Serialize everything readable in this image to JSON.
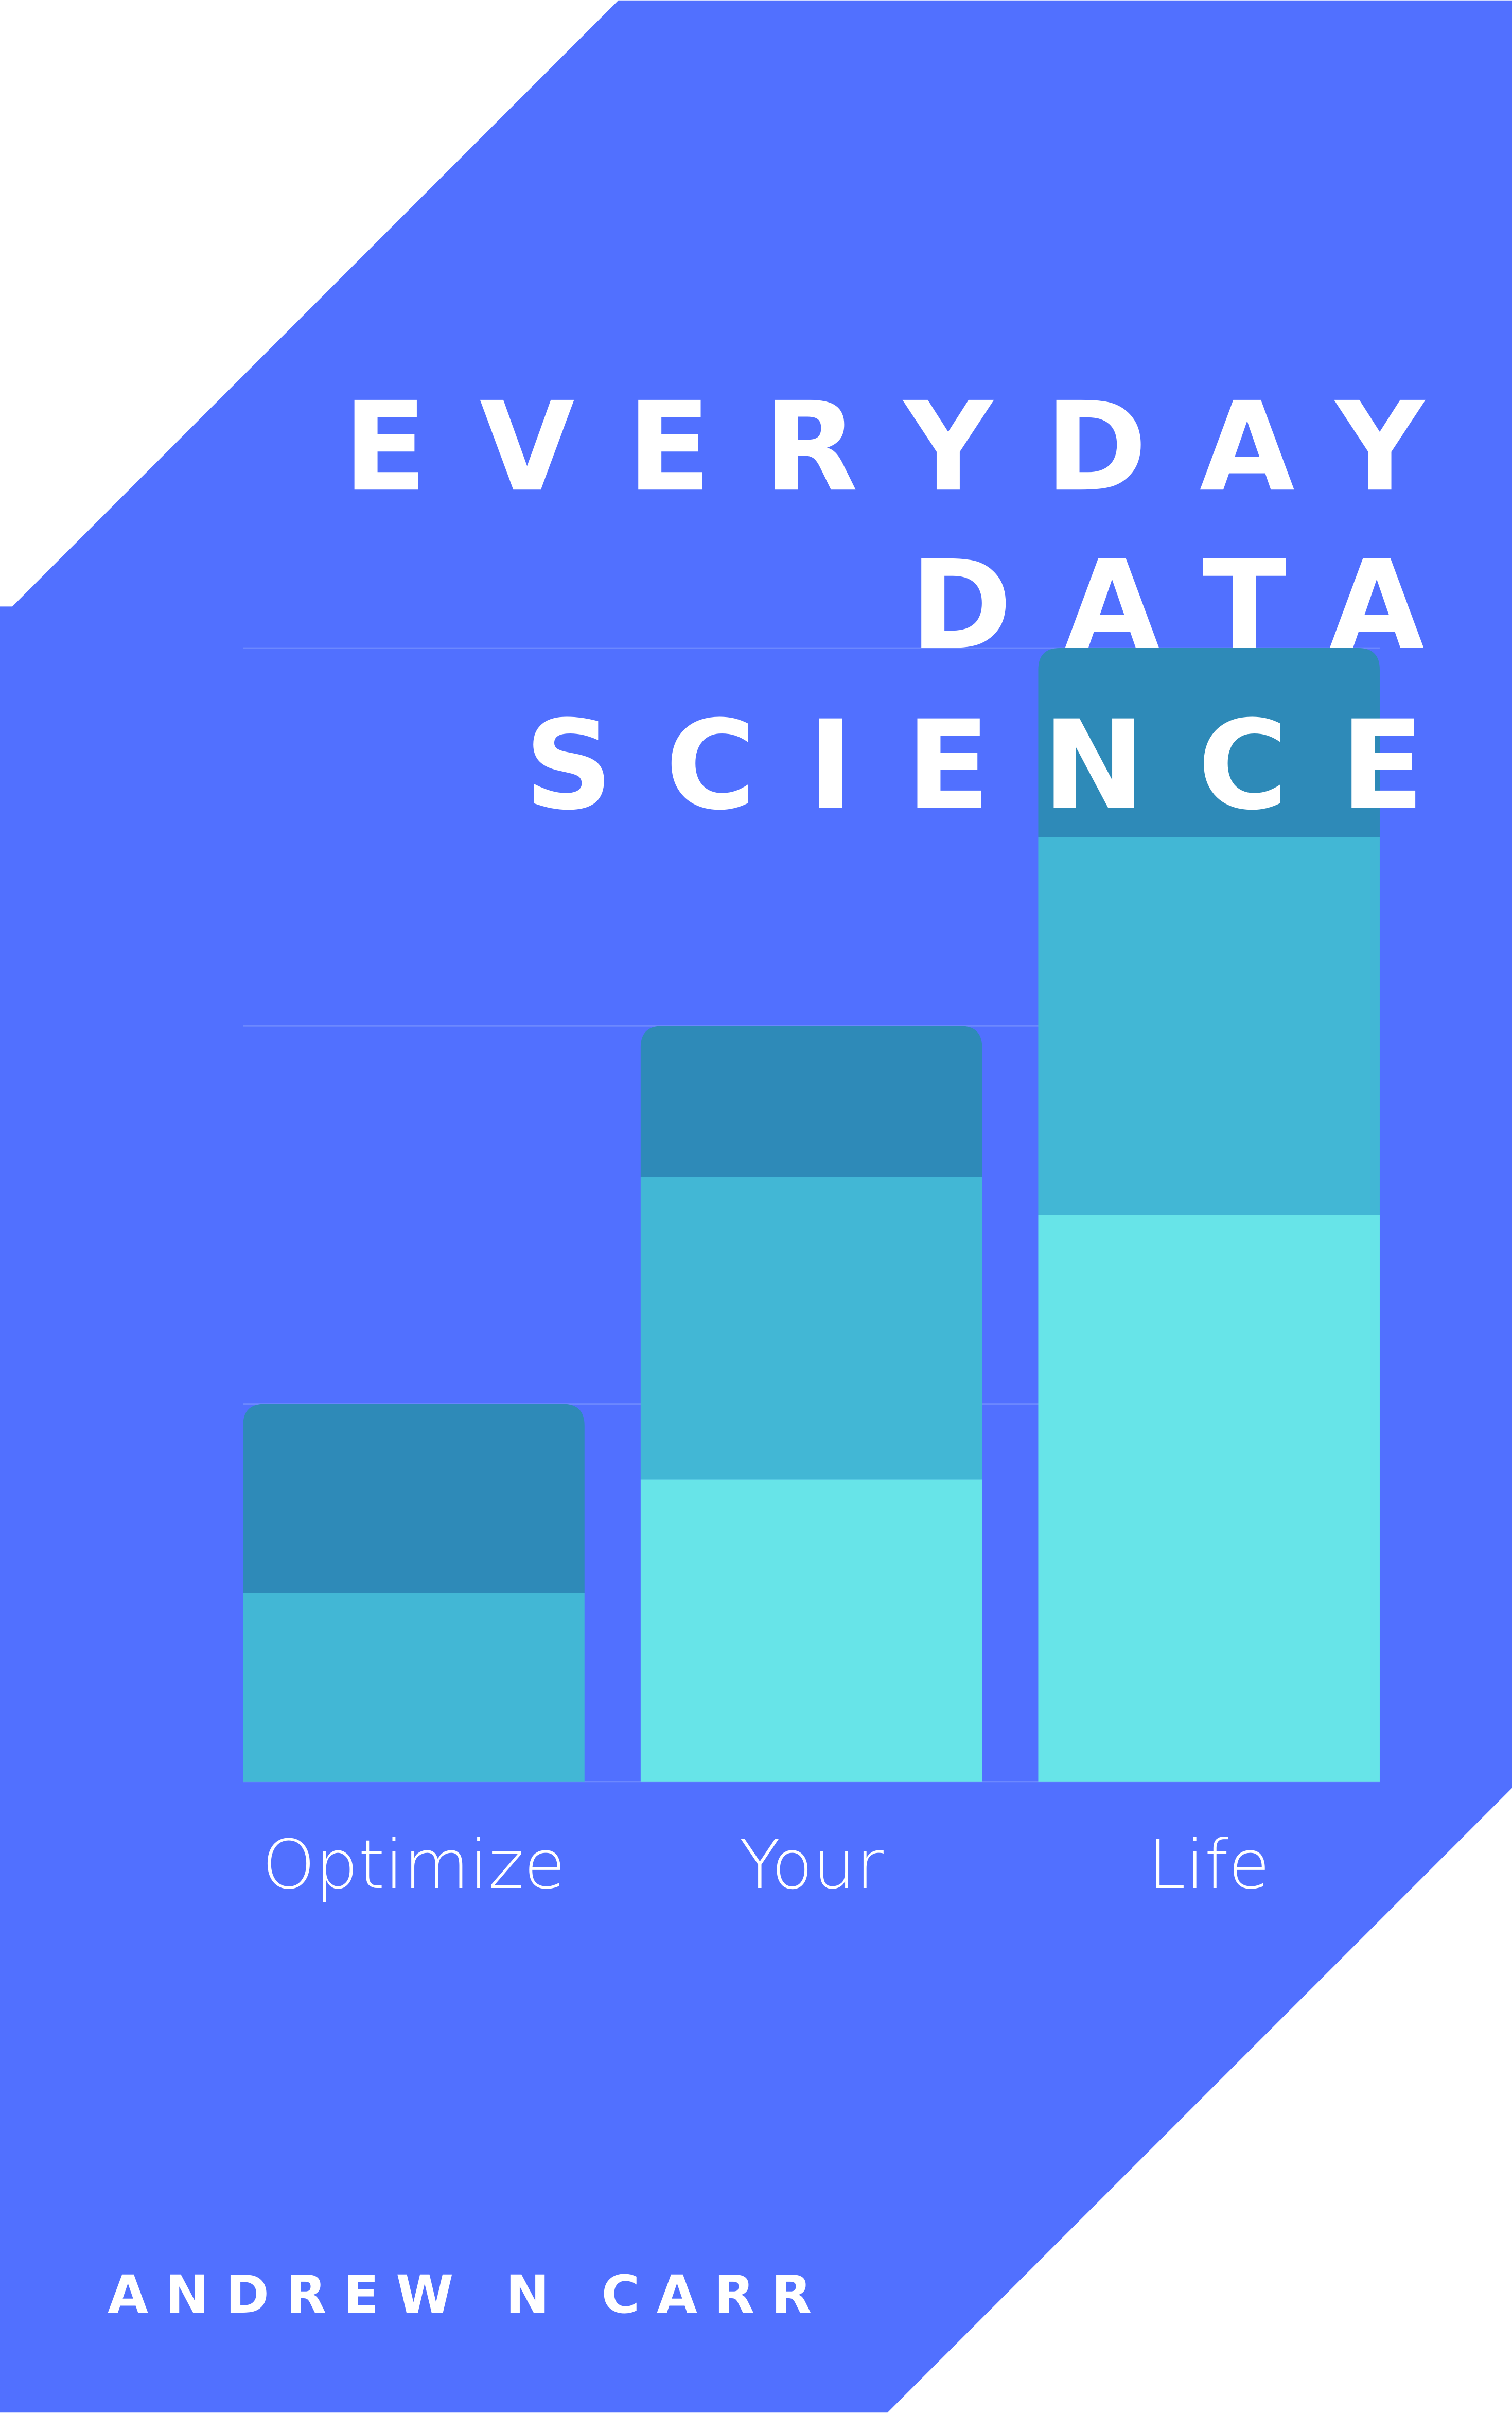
{
  "title": {
    "lines": [
      "EVERYDAY",
      "DATA",
      "SCIENCE"
    ]
  },
  "author": "ANDREW N CARR",
  "chart_data": {
    "type": "bar",
    "stacked": true,
    "categories": [
      "Optimize",
      "Your",
      "Life"
    ],
    "series": [
      {
        "color": "#67E4E8",
        "values": [
          0,
          0.8,
          1.5
        ]
      },
      {
        "color": "#42B7D5",
        "values": [
          0.5,
          0.8,
          1.0
        ]
      },
      {
        "color": "#2E8AB8",
        "values": [
          0.5,
          0.4,
          0.5
        ]
      }
    ],
    "ylim": [
      0,
      3
    ],
    "yticks": [
      0,
      1,
      2,
      3
    ],
    "grid": true,
    "grid_color": "#6C88FF"
  }
}
